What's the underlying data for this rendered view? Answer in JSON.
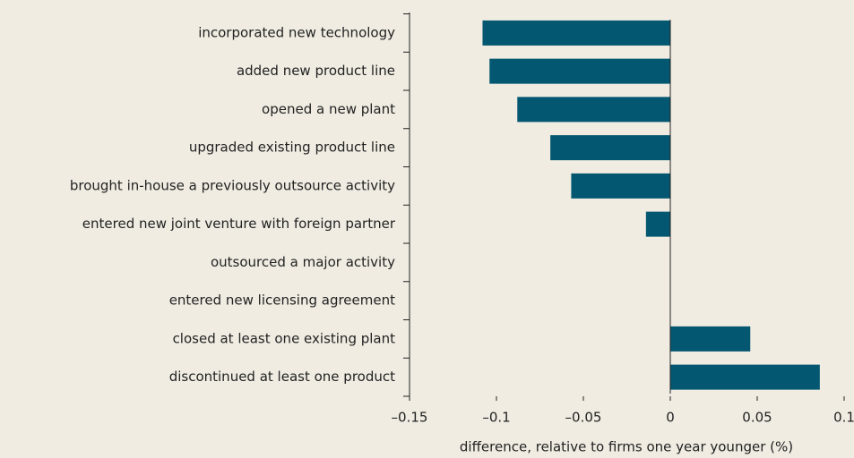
{
  "chart_data": {
    "type": "barh",
    "categories": [
      "incorporated new technology",
      "added new product line",
      "opened a new plant",
      "upgraded existing product line",
      "brought in-house a previously outsource activity",
      "entered new joint venture with foreign partner",
      "outsourced a major activity",
      "entered new licensing agreement",
      "closed at least one existing plant",
      "discontinued at least one product"
    ],
    "values": [
      -0.108,
      -0.104,
      -0.088,
      -0.069,
      -0.057,
      -0.014,
      0,
      0,
      0.046,
      0.086
    ],
    "color": "#045770",
    "xlabel": "difference, relative to firms one year younger (%)",
    "xlim": [
      -0.15,
      0.1
    ],
    "xticks": [
      {
        "value": -0.15,
        "label": "–0.15"
      },
      {
        "value": -0.1,
        "label": "–0.1"
      },
      {
        "value": -0.05,
        "label": "–0.05"
      },
      0,
      0.05,
      0.1
    ]
  }
}
